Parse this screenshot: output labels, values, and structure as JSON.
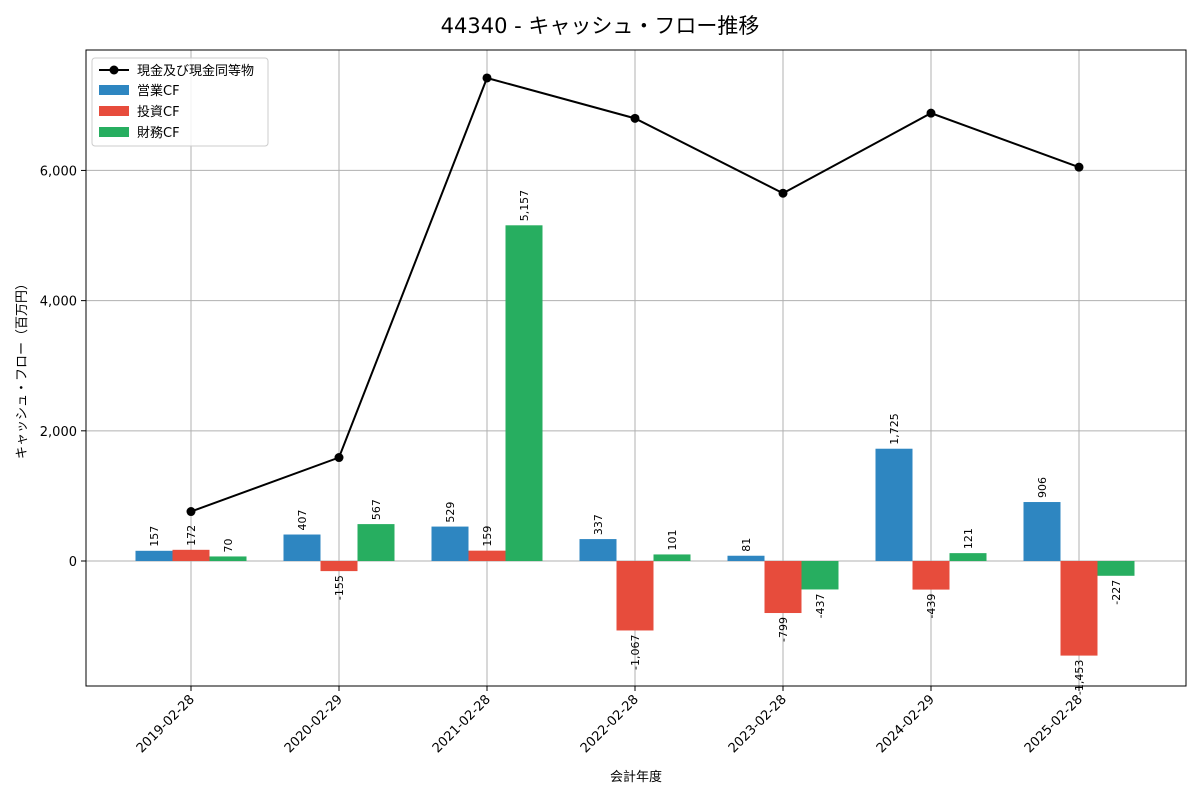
{
  "chart_data": {
    "type": "bar",
    "title": "44340 - キャッシュ・フロー推移",
    "xlabel": "会計年度",
    "ylabel": "キャッシュ・フロー（百万円）",
    "categories": [
      "2019-02-28",
      "2020-02-29",
      "2021-02-28",
      "2022-02-28",
      "2023-02-28",
      "2024-02-29",
      "2025-02-28"
    ],
    "ylim": [
      -1920,
      7850
    ],
    "yticks": [
      0,
      2000,
      4000,
      6000
    ],
    "ytick_labels": [
      "0",
      "2,000",
      "4,000",
      "6,000"
    ],
    "grid": true,
    "legend_position": "top-left",
    "series": [
      {
        "name": "営業CF",
        "type": "bar",
        "color": "#2e86c1",
        "values": [
          157,
          407,
          529,
          337,
          81,
          1725,
          906
        ],
        "labels": [
          "157",
          "407",
          "529",
          "337",
          "81",
          "1,725",
          "906"
        ]
      },
      {
        "name": "投資CF",
        "type": "bar",
        "color": "#e74c3c",
        "values": [
          172,
          -155,
          159,
          -1067,
          -799,
          -439,
          -1453
        ],
        "labels": [
          "172",
          "-155",
          "159",
          "-1,067",
          "-799",
          "-439",
          "-1,453"
        ]
      },
      {
        "name": "財務CF",
        "type": "bar",
        "color": "#27ae60",
        "values": [
          70,
          567,
          5157,
          101,
          -437,
          121,
          -227
        ],
        "labels": [
          "70",
          "567",
          "5,157",
          "101",
          "-437",
          "121",
          "-227"
        ]
      },
      {
        "name": "現金及び現金同等物",
        "type": "line",
        "color": "#000000",
        "marker": "circle",
        "values": [
          760,
          1590,
          7420,
          6800,
          5650,
          6880,
          6050
        ]
      }
    ]
  }
}
